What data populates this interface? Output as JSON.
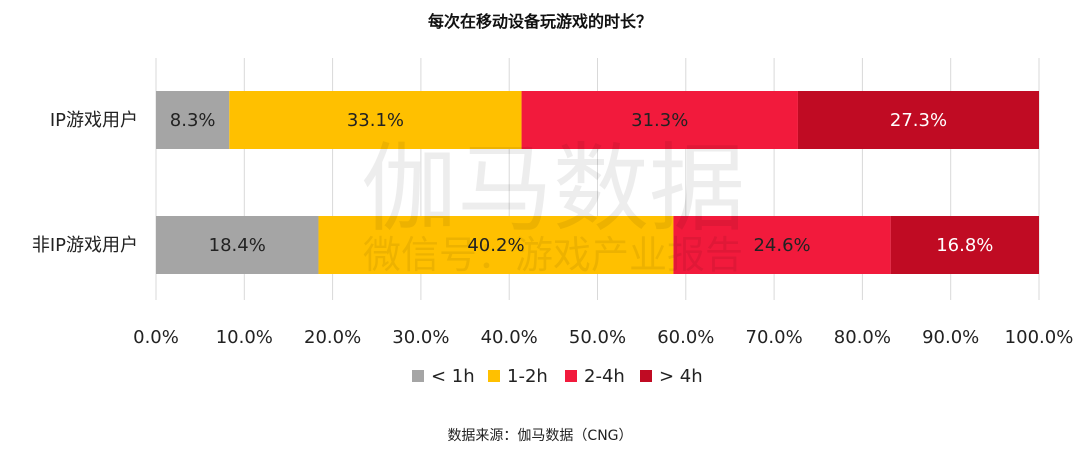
{
  "chart_data": {
    "type": "bar",
    "orientation": "horizontal",
    "stacked": true,
    "title": "每次在移动设备玩游戏的时长？",
    "categories": [
      "IP游戏用户",
      "非IP游戏用户"
    ],
    "series": [
      {
        "name": "< 1h",
        "values": [
          8.3,
          18.4
        ],
        "labels": [
          "8.3%",
          "18.4%"
        ],
        "color": "#A5A5A5",
        "label_color": "#222222"
      },
      {
        "name": "1-2h",
        "values": [
          33.1,
          40.2
        ],
        "labels": [
          "33.1%",
          "40.2%"
        ],
        "color": "#FFC000",
        "label_color": "#222222"
      },
      {
        "name": "2-4h",
        "values": [
          31.3,
          24.6
        ],
        "labels": [
          "31.3%",
          "24.6%"
        ],
        "color": "#F21A3C",
        "label_color": "#222222"
      },
      {
        "name": "> 4h",
        "values": [
          27.3,
          16.8
        ],
        "labels": [
          "27.3%",
          "16.8%"
        ],
        "color": "#C00B23",
        "label_color": "#ffffff"
      }
    ],
    "x_ticks": [
      "0.0%",
      "10.0%",
      "20.0%",
      "30.0%",
      "40.0%",
      "50.0%",
      "60.0%",
      "70.0%",
      "80.0%",
      "90.0%",
      "100.0%"
    ],
    "xlim": [
      0,
      100
    ],
    "grid": "vertical",
    "legend_position": "bottom"
  },
  "watermark": {
    "line1": "伽马数据",
    "line2": "微信号：游戏产业报告"
  },
  "source": "数据来源：伽马数据（CNG）"
}
